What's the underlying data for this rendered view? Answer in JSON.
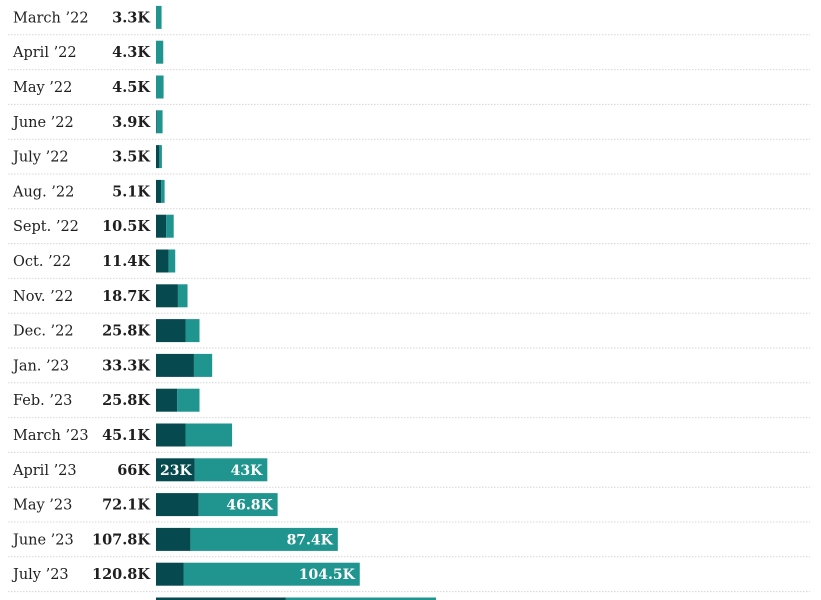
{
  "chart_data": {
    "type": "bar",
    "orientation": "horizontal",
    "stacked": true,
    "colors": {
      "series_a": "#064a50",
      "series_b": "#20958f"
    },
    "rows": [
      {
        "month": "March ’22",
        "total": 3.3,
        "total_label": "3.3K",
        "a": 0,
        "b": 3.3,
        "a_label": "",
        "b_label": ""
      },
      {
        "month": "April ’22",
        "total": 4.3,
        "total_label": "4.3K",
        "a": 0,
        "b": 4.3,
        "a_label": "",
        "b_label": ""
      },
      {
        "month": "May ’22",
        "total": 4.5,
        "total_label": "4.5K",
        "a": 0,
        "b": 4.5,
        "a_label": "",
        "b_label": ""
      },
      {
        "month": "June ’22",
        "total": 3.9,
        "total_label": "3.9K",
        "a": 0.4,
        "b": 3.5,
        "a_label": "",
        "b_label": ""
      },
      {
        "month": "July ’22",
        "total": 3.5,
        "total_label": "3.5K",
        "a": 2.0,
        "b": 1.5,
        "a_label": "",
        "b_label": ""
      },
      {
        "month": "Aug. ’22",
        "total": 5.1,
        "total_label": "5.1K",
        "a": 3.0,
        "b": 2.1,
        "a_label": "",
        "b_label": ""
      },
      {
        "month": "Sept. ’22",
        "total": 10.5,
        "total_label": "10.5K",
        "a": 6.0,
        "b": 4.5,
        "a_label": "",
        "b_label": ""
      },
      {
        "month": "Oct. ’22",
        "total": 11.4,
        "total_label": "11.4K",
        "a": 7.5,
        "b": 3.9,
        "a_label": "",
        "b_label": ""
      },
      {
        "month": "Nov. ’22",
        "total": 18.7,
        "total_label": "18.7K",
        "a": 13.0,
        "b": 5.7,
        "a_label": "",
        "b_label": ""
      },
      {
        "month": "Dec. ’22",
        "total": 25.8,
        "total_label": "25.8K",
        "a": 17.5,
        "b": 8.3,
        "a_label": "",
        "b_label": ""
      },
      {
        "month": "Jan. ’23",
        "total": 33.3,
        "total_label": "33.3K",
        "a": 22.5,
        "b": 10.8,
        "a_label": "",
        "b_label": ""
      },
      {
        "month": "Feb. ’23",
        "total": 25.8,
        "total_label": "25.8K",
        "a": 12.5,
        "b": 13.3,
        "a_label": "",
        "b_label": ""
      },
      {
        "month": "March ’23",
        "total": 45.1,
        "total_label": "45.1K",
        "a": 17.5,
        "b": 27.6,
        "a_label": "",
        "b_label": ""
      },
      {
        "month": "April ’23",
        "total": 66,
        "total_label": "66K",
        "a": 23,
        "b": 43,
        "a_label": "23K",
        "b_label": "43K"
      },
      {
        "month": "May ’23",
        "total": 72.1,
        "total_label": "72.1K",
        "a": 25.3,
        "b": 46.8,
        "a_label": "",
        "b_label": "46.8K"
      },
      {
        "month": "June ’23",
        "total": 107.8,
        "total_label": "107.8K",
        "a": 20.4,
        "b": 87.4,
        "a_label": "",
        "b_label": "87.4K"
      },
      {
        "month": "July ’23",
        "total": 120.8,
        "total_label": "120.8K",
        "a": 16.3,
        "b": 104.5,
        "a_label": "",
        "b_label": "104.5K"
      },
      {
        "month": "",
        "total": 166,
        "total_label": "",
        "a": 77,
        "b": 89,
        "a_label": "",
        "b_label": ""
      }
    ]
  }
}
